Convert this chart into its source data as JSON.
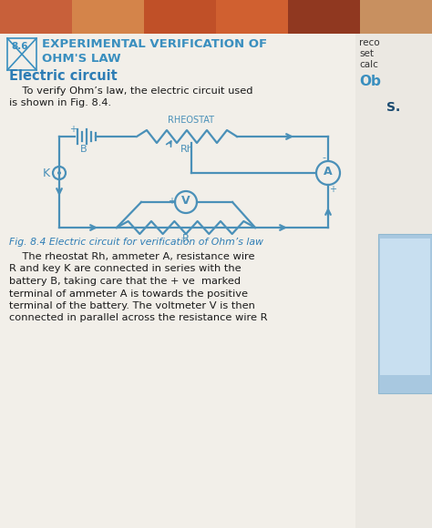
{
  "bg_color": "#f0ede6",
  "page_color": "#f2efe9",
  "section_num": "8.6",
  "section_title_line1": "EXPERIMENTAL VERIFICATION OF",
  "section_title_line2": "OHM'S LAW",
  "title_color": "#3a8fbf",
  "subsection_title": "Electric circuit",
  "subsection_color": "#2e7db5",
  "body_color": "#1a1a1a",
  "circuit_color": "#4a90b8",
  "right_text_reco": "reco",
  "right_text_set": "set",
  "right_text_calc": "calc",
  "right_text_ob": "Ob",
  "right_text_s": "S.",
  "fig_caption": "Fig. 8.4 Electric circuit for verification of Ohm’s law",
  "fig_caption_color": "#2e7db5",
  "body1_line1": "    To verify Ohm’s law, the electric circuit used",
  "body1_line2": "is shown in Fig. 8.4.",
  "body2_lines": [
    "    The rheostat Rh, ammeter A, resistance wire",
    "R and key K are connected in series with the",
    "battery B, taking care that the + ve  marked",
    "terminal of ammeter A is towards the positive",
    "terminal of the battery. The voltmeter V is then",
    "connected in parallel across the resistance wire R"
  ],
  "top_colors": [
    "#c8603a",
    "#d4844a",
    "#c05028",
    "#d06030",
    "#903820",
    "#c89060"
  ],
  "blue_panel_color": "#a8c8e0",
  "blue_panel_dark": "#7aaac8"
}
